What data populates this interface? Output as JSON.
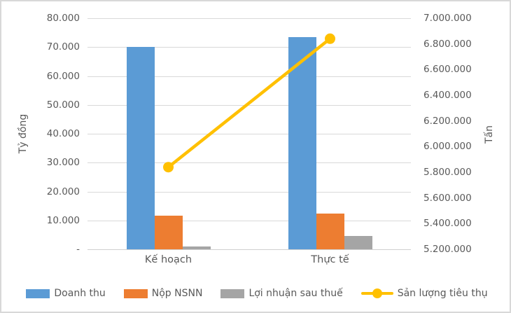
{
  "chart_data": {
    "type": "combo-bar-line",
    "categories": [
      "Kế hoạch",
      "Thực tế"
    ],
    "bar_series": [
      {
        "key": "doanh-thu",
        "name": "Doanh thu",
        "color": "#5B9BD5",
        "axis": "left",
        "values": [
          70000,
          73500
        ]
      },
      {
        "key": "nop-nsnn",
        "name": "Nộp NSNN",
        "color": "#ED7D31",
        "axis": "left",
        "values": [
          11700,
          12300
        ]
      },
      {
        "key": "loi-nhuan-sau-thue",
        "name": "Lợi nhuận sau thuế",
        "color": "#A5A5A5",
        "axis": "left",
        "values": [
          1000,
          4600
        ]
      }
    ],
    "line_series": [
      {
        "key": "san-luong-tieu-thu",
        "name": "Sản lượng tiêu thụ",
        "color": "#FFC000",
        "axis": "right",
        "values": [
          5840000,
          6840000
        ]
      }
    ],
    "left_axis": {
      "title": "Tỷ đồng",
      "min": 0,
      "max": 80000,
      "step": 10000,
      "tick_labels": [
        "-",
        "10.000",
        "20.000",
        "30.000",
        "40.000",
        "50.000",
        "60.000",
        "70.000",
        "80.000"
      ]
    },
    "right_axis": {
      "title": "Tấn",
      "min": 5200000,
      "max": 7000000,
      "step": 200000,
      "tick_labels": [
        "5.200.000",
        "5.400.000",
        "5.600.000",
        "5.800.000",
        "6.000.000",
        "6.200.000",
        "6.400.000",
        "6.600.000",
        "6.800.000",
        "7.000.000"
      ]
    },
    "grid": true,
    "legend_position": "bottom",
    "colors": {
      "text": "#595959",
      "gridline": "#D9D9D9",
      "border": "#D8D8D8",
      "background": "#FFFFFF"
    }
  }
}
